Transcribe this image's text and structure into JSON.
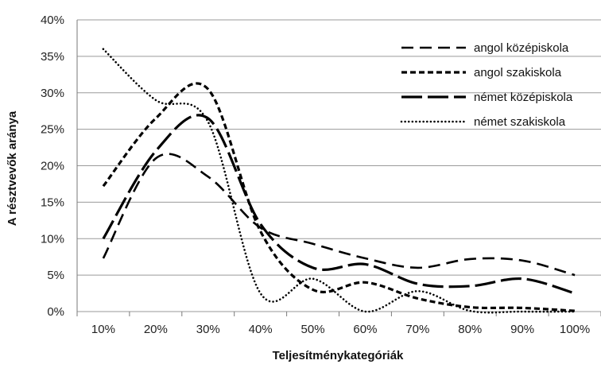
{
  "chart_data": {
    "type": "line",
    "xlabel": "Teljesítménykategóriák",
    "ylabel": "A résztvevők aránya",
    "categories": [
      "10%",
      "20%",
      "30%",
      "40%",
      "50%",
      "60%",
      "70%",
      "80%",
      "90%",
      "100%"
    ],
    "y_ticks": [
      "0%",
      "5%",
      "10%",
      "15%",
      "20%",
      "25%",
      "30%",
      "35%",
      "40%"
    ],
    "ylim": [
      0,
      40
    ],
    "grid": true,
    "legend_position": "right",
    "series": [
      {
        "name": "angol középiskola",
        "values": [
          7.3,
          21.0,
          18.5,
          11.5,
          9.3,
          7.3,
          6.0,
          7.2,
          7.0,
          5.0
        ]
      },
      {
        "name": "angol szakiskola",
        "values": [
          17.2,
          26.5,
          30.5,
          11.0,
          3.0,
          4.0,
          1.8,
          0.6,
          0.5,
          0.1
        ]
      },
      {
        "name": "német középiskola",
        "values": [
          10.0,
          22.0,
          26.5,
          12.0,
          6.0,
          6.5,
          3.8,
          3.5,
          4.5,
          2.5
        ]
      },
      {
        "name": "német szakiskola",
        "values": [
          36.0,
          29.0,
          26.0,
          2.5,
          4.5,
          0.0,
          2.8,
          0.1,
          0.0,
          0.0
        ]
      }
    ]
  }
}
